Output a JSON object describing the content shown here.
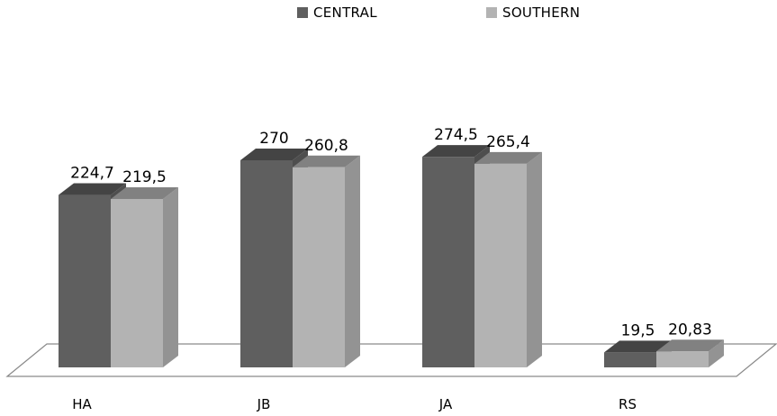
{
  "chart_data": {
    "type": "bar",
    "categories": [
      "HA",
      "JB",
      "JA",
      "RS"
    ],
    "series": [
      {
        "name": "CENTRAL",
        "values": [
          224.7,
          270,
          274.5,
          19.5
        ],
        "labels": [
          "224,7",
          "270",
          "274,5",
          "19,5"
        ],
        "color": "#5f5f5f"
      },
      {
        "name": "SOUTHERN",
        "values": [
          219.5,
          260.8,
          265.4,
          20.83
        ],
        "labels": [
          "219,5",
          "260,8",
          "265,4",
          "20,83"
        ],
        "color": "#b3b3b3"
      }
    ],
    "title": "",
    "xlabel": "",
    "ylabel": "",
    "ylim": [
      0,
      280
    ],
    "grid": false,
    "legend": "top-center",
    "style": "3d-column"
  }
}
